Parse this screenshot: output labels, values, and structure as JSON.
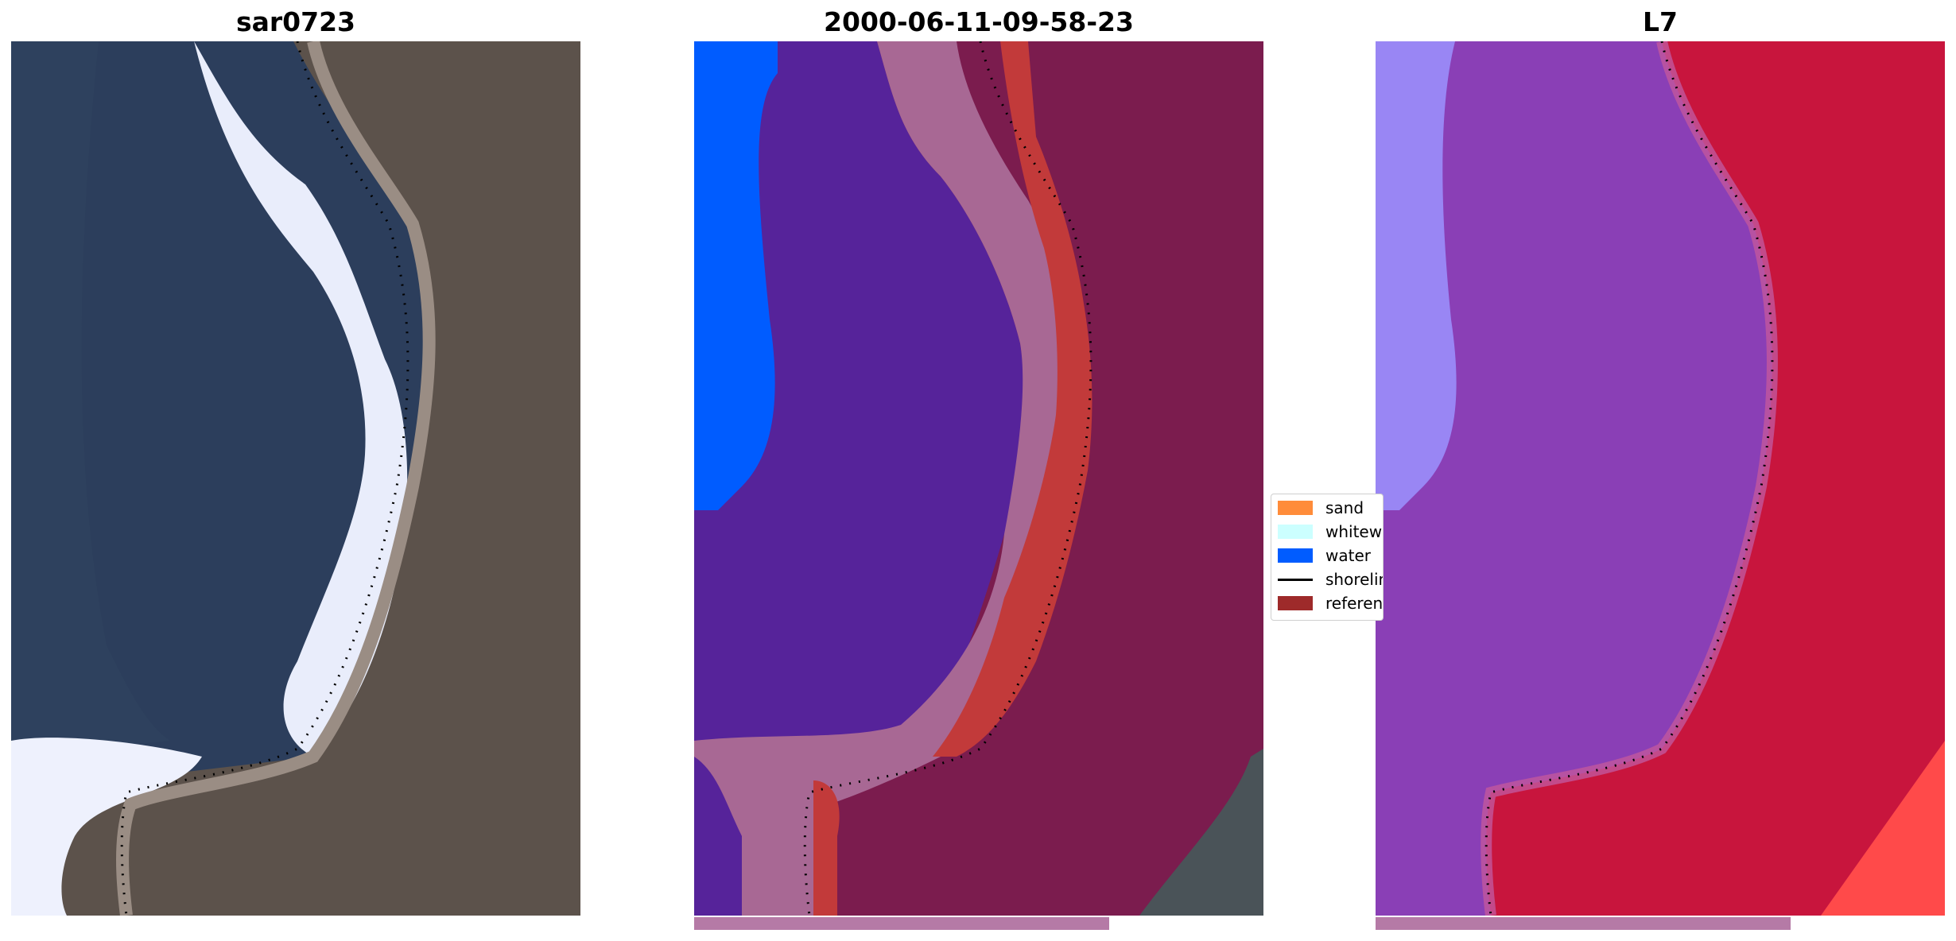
{
  "panels": [
    {
      "title": "sar0723",
      "kind": "rgb"
    },
    {
      "title": "2000-06-11-09-58-23",
      "kind": "classified"
    },
    {
      "title": "L7",
      "kind": "ndwi"
    }
  ],
  "legend": {
    "items": [
      {
        "label": "sand",
        "color": "#ff8c3a"
      },
      {
        "label": "whitewater",
        "color": "#ccffff"
      },
      {
        "label": "water",
        "color": "#005cff"
      },
      {
        "label": "shoreline",
        "color": "#000000",
        "type": "line"
      },
      {
        "label": "reference",
        "color": "#9e2a2a"
      }
    ]
  },
  "colors": {
    "sea": "#2c3d5a",
    "land": "#5d5148",
    "surf": "#e8ecfb",
    "class_water_deep": "#56239a",
    "class_water": "#005cff",
    "class_sand": "#a86894",
    "class_land": "#7b1c4e",
    "class_reference": "#c23a3a",
    "ndwi_water": "#8a3fb6",
    "ndwi_land": "#c8153d",
    "ndwi_bright": "#9b93ff",
    "strip": "#b57aa6"
  }
}
